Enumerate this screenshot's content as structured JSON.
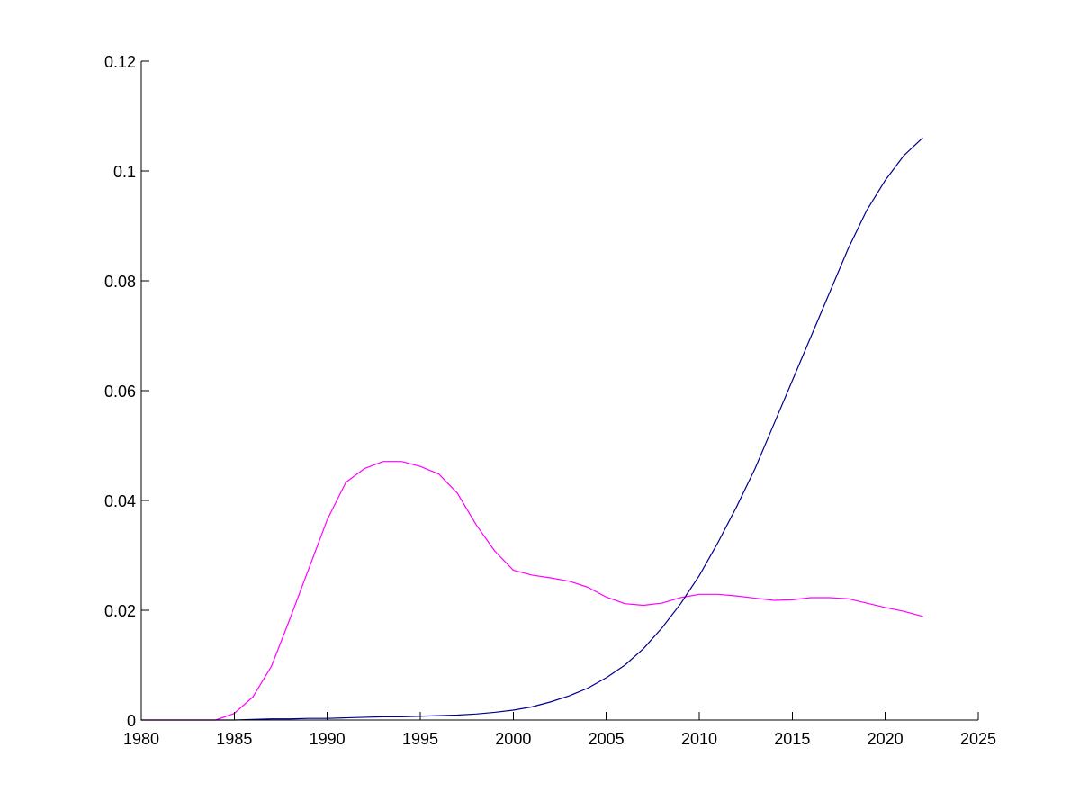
{
  "chart_data": {
    "type": "line",
    "title": "",
    "xlabel": "",
    "ylabel": "",
    "xlim": [
      1980,
      2025
    ],
    "ylim": [
      0,
      0.12
    ],
    "grid": false,
    "box": false,
    "x_ticks": [
      1980,
      1985,
      1990,
      1995,
      2000,
      2005,
      2010,
      2015,
      2020,
      2025
    ],
    "y_ticks": [
      0,
      0.02,
      0.04,
      0.06,
      0.08,
      0.1,
      0.12
    ],
    "y_tick_labels": [
      "0",
      "0.02",
      "0.04",
      "0.06",
      "0.08",
      "0.1",
      "0.12"
    ],
    "x": [
      1980,
      1981,
      1982,
      1983,
      1984,
      1985,
      1986,
      1987,
      1988,
      1989,
      1990,
      1991,
      1992,
      1993,
      1994,
      1995,
      1996,
      1997,
      1998,
      1999,
      2000,
      2001,
      2002,
      2003,
      2004,
      2005,
      2006,
      2007,
      2008,
      2009,
      2010,
      2011,
      2012,
      2013,
      2014,
      2015,
      2016,
      2017,
      2018,
      2019,
      2020,
      2021,
      2022
    ],
    "series": [
      {
        "color": "#ff00ff",
        "values": [
          0,
          0,
          0,
          0,
          0,
          0.0012,
          0.0042,
          0.0098,
          0.0185,
          0.0275,
          0.0365,
          0.0433,
          0.0458,
          0.0471,
          0.0471,
          0.0462,
          0.0448,
          0.0413,
          0.0356,
          0.0308,
          0.0273,
          0.0264,
          0.0259,
          0.0253,
          0.0242,
          0.0224,
          0.0212,
          0.0209,
          0.0213,
          0.0223,
          0.0229,
          0.0229,
          0.0226,
          0.0222,
          0.0218,
          0.0219,
          0.0223,
          0.0223,
          0.0221,
          0.0213,
          0.0205,
          0.0198,
          0.0189
        ]
      },
      {
        "color": "#00008b",
        "values": [
          0,
          0,
          0,
          0,
          0,
          0,
          0.0001,
          0.0002,
          0.0002,
          0.0003,
          0.0003,
          0.0004,
          0.0005,
          0.0006,
          0.0006,
          0.0007,
          0.0008,
          0.0009,
          0.0011,
          0.0014,
          0.0018,
          0.0024,
          0.0033,
          0.0044,
          0.0058,
          0.0077,
          0.01,
          0.013,
          0.0168,
          0.0212,
          0.0263,
          0.0323,
          0.0388,
          0.0458,
          0.0538,
          0.0618,
          0.0698,
          0.0778,
          0.0858,
          0.0928,
          0.0983,
          0.1028,
          0.106
        ]
      }
    ]
  }
}
